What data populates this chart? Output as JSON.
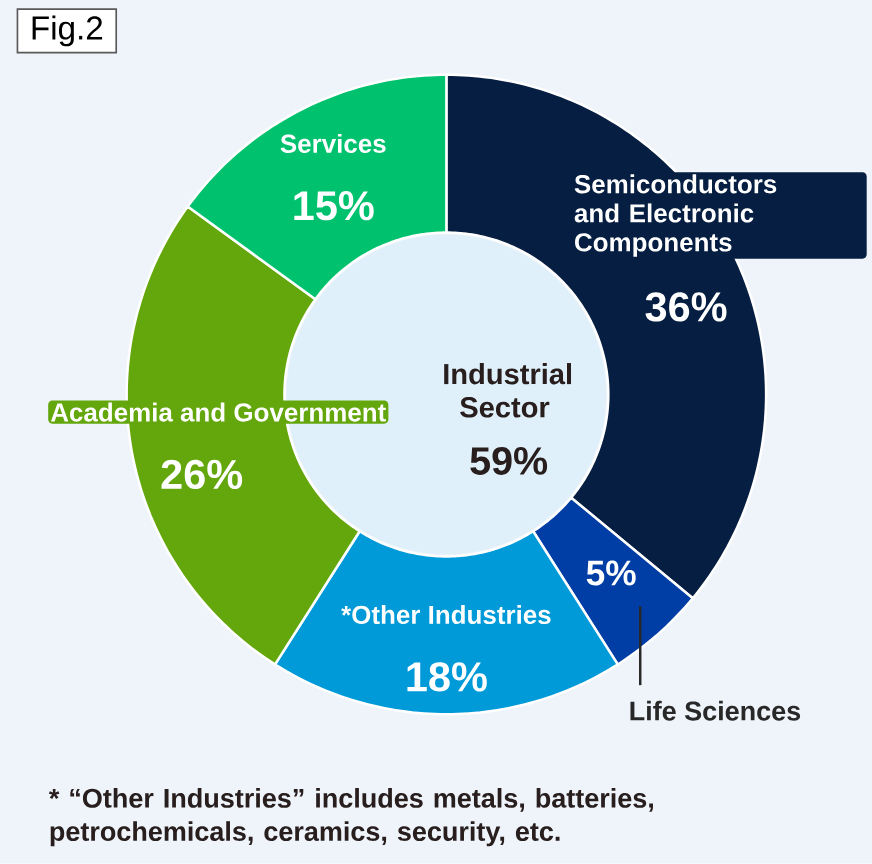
{
  "chart_data": {
    "type": "donut",
    "title": "Fig.2",
    "categories": [
      "Semiconductors and Electronic Components",
      "Life Sciences",
      "*Other Industries",
      "Academia and Government",
      "Services"
    ],
    "values": [
      36,
      5,
      18,
      26,
      15
    ],
    "colors": [
      "#051e42",
      "#003da5",
      "#009ad8",
      "#63a70c",
      "#00c26e"
    ],
    "value_labels": [
      "36%",
      "5%",
      "18%",
      "26%",
      "15%"
    ],
    "annotations": [
      "Industrial Sector",
      "59%",
      "* “Other Industries” includes metals, batteries, petrochemicals, ceramics, security, etc."
    ]
  }
}
